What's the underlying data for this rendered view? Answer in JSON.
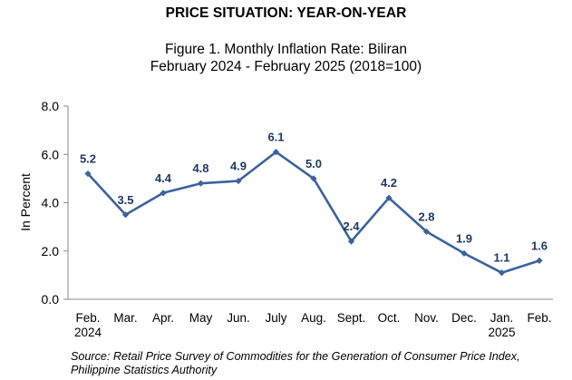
{
  "heading": "PRICE SITUATION: YEAR-ON-YEAR",
  "chart_data": {
    "type": "line",
    "title_line1": "Figure 1. Monthly Inflation Rate: Biliran",
    "title_line2": "February 2024 - February 2025 (2018=100)",
    "ylabel": "In Percent",
    "ylim": [
      0,
      8
    ],
    "yticks": [
      "0.0",
      "2.0",
      "4.0",
      "6.0",
      "8.0"
    ],
    "categories": [
      [
        "Feb.",
        "2024"
      ],
      [
        "Mar."
      ],
      [
        "Apr."
      ],
      [
        "May"
      ],
      [
        "Jun."
      ],
      [
        "July"
      ],
      [
        "Aug."
      ],
      [
        "Sept."
      ],
      [
        "Oct."
      ],
      [
        "Nov."
      ],
      [
        "Dec."
      ],
      [
        "Jan.",
        "2025"
      ],
      [
        "Feb."
      ]
    ],
    "values": [
      5.2,
      3.5,
      4.4,
      4.8,
      4.9,
      6.1,
      5.0,
      2.4,
      4.2,
      2.8,
      1.9,
      1.1,
      1.6
    ],
    "data_labels": [
      "5.2",
      "3.5",
      "4.4",
      "4.8",
      "4.9",
      "6.1",
      "5.0",
      "2.4",
      "4.2",
      "2.8",
      "1.9",
      "1.1",
      "1.6"
    ],
    "grid": false,
    "legend": "none",
    "line_color": "#3A639C",
    "label_color": "#1F3864"
  },
  "source": "Source: Retail Price Survey of Commodities for the Generation of Consumer Price Index, Philippine Statistics Authority"
}
